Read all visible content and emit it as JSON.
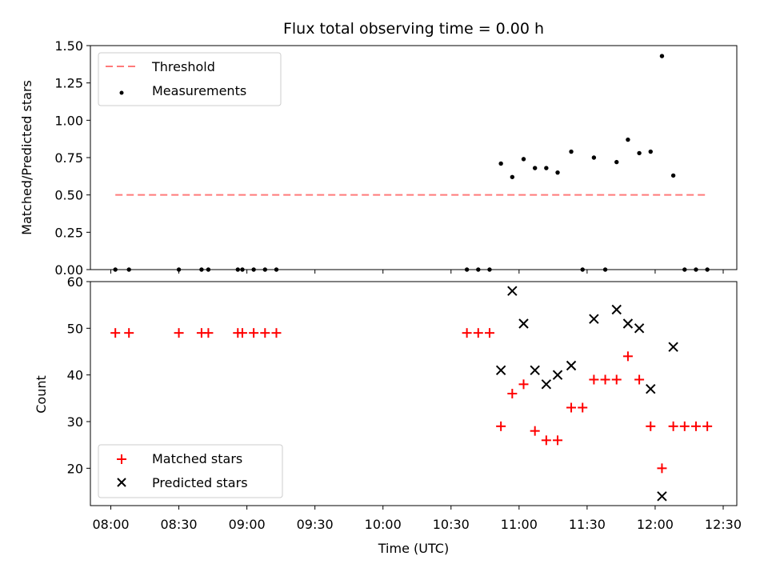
{
  "chart_data": [
    {
      "type": "scatter",
      "title": "Flux total observing time = 0.00 h",
      "xlabel": "",
      "ylabel": "Matched/Predicted stars",
      "xlim": [
        "07:51",
        "12:36"
      ],
      "ylim": [
        0,
        1.5
      ],
      "yticks": [
        "0.00",
        "0.25",
        "0.50",
        "0.75",
        "1.00",
        "1.25",
        "1.50"
      ],
      "legend_position": "top-left",
      "threshold": {
        "name": "Threshold",
        "value": 0.5,
        "x_start": "08:02",
        "x_end": "12:23",
        "color": "#ff7a7a",
        "style": "dashed"
      },
      "series": [
        {
          "name": "Measurements",
          "color": "#000000",
          "marker": "dot",
          "x": [
            "08:02",
            "08:08",
            "08:30",
            "08:40",
            "08:43",
            "08:56",
            "08:58",
            "09:03",
            "09:08",
            "09:13",
            "10:37",
            "10:42",
            "10:47",
            "10:52",
            "10:57",
            "11:02",
            "11:07",
            "11:12",
            "11:17",
            "11:23",
            "11:28",
            "11:33",
            "11:38",
            "11:43",
            "11:48",
            "11:53",
            "11:58",
            "12:03",
            "12:08",
            "12:13",
            "12:18",
            "12:23"
          ],
          "y": [
            0,
            0,
            0,
            0,
            0,
            0,
            0,
            0,
            0,
            0,
            0,
            0,
            0,
            0.71,
            0.62,
            0.74,
            0.68,
            0.68,
            0.65,
            0.79,
            0,
            0.75,
            0,
            0.72,
            0.87,
            0.78,
            0.79,
            1.43,
            0.63,
            0,
            0,
            0
          ]
        }
      ]
    },
    {
      "type": "scatter",
      "title": "",
      "xlabel": "Time (UTC)",
      "ylabel": "Count",
      "xlim": [
        "07:51",
        "12:36"
      ],
      "ylim": [
        12,
        60
      ],
      "yticks": [
        "20",
        "30",
        "40",
        "50",
        "60"
      ],
      "xticks": [
        "08:00",
        "08:30",
        "09:00",
        "09:30",
        "10:00",
        "10:30",
        "11:00",
        "11:30",
        "12:00",
        "12:30"
      ],
      "legend_position": "bottom-left",
      "series": [
        {
          "name": "Matched stars",
          "color": "#ff0000",
          "marker": "plus",
          "x": [
            "08:02",
            "08:08",
            "08:30",
            "08:40",
            "08:43",
            "08:56",
            "08:58",
            "09:03",
            "09:08",
            "09:13",
            "10:37",
            "10:42",
            "10:47",
            "10:52",
            "10:57",
            "11:02",
            "11:07",
            "11:12",
            "11:17",
            "11:23",
            "11:28",
            "11:33",
            "11:38",
            "11:43",
            "11:48",
            "11:53",
            "11:58",
            "12:03",
            "12:08",
            "12:13",
            "12:18",
            "12:23"
          ],
          "y": [
            49,
            49,
            49,
            49,
            49,
            49,
            49,
            49,
            49,
            49,
            49,
            49,
            49,
            29,
            36,
            38,
            28,
            26,
            26,
            33,
            33,
            39,
            39,
            39,
            44,
            39,
            29,
            20,
            29,
            29,
            29,
            29
          ]
        },
        {
          "name": "Predicted stars",
          "color": "#000000",
          "marker": "x",
          "x": [
            "10:52",
            "10:57",
            "11:02",
            "11:07",
            "11:12",
            "11:17",
            "11:23",
            "11:33",
            "11:43",
            "11:48",
            "11:53",
            "11:58",
            "12:03",
            "12:08"
          ],
          "y": [
            41,
            58,
            51,
            41,
            38,
            40,
            42,
            52,
            54,
            51,
            50,
            37,
            14,
            46
          ]
        }
      ]
    }
  ]
}
